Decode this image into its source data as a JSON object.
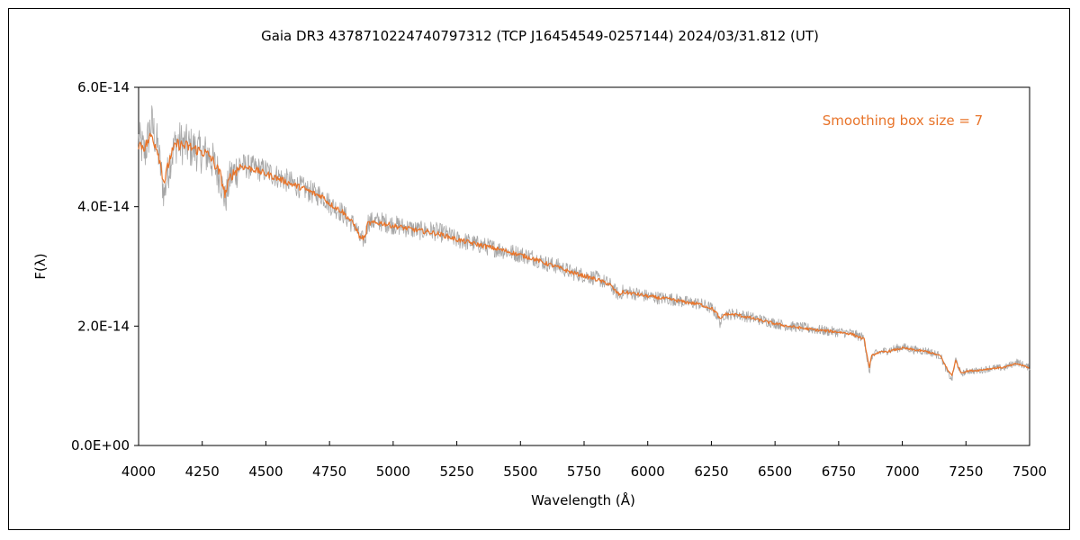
{
  "chart_data": {
    "type": "line",
    "title": "Gaia DR3 4378710224740797312 (TCP J16454549-0257144)   2024/03/31.812 (UT)",
    "xlabel": "Wavelength (Å)",
    "ylabel": "F(λ)",
    "annotation": "Smoothing box size = 7",
    "xlim": [
      4000,
      7500
    ],
    "ylim": [
      0,
      6e-14
    ],
    "x_ticks": [
      4000,
      4250,
      4500,
      4750,
      5000,
      5250,
      5500,
      5750,
      6000,
      6250,
      6500,
      6750,
      7000,
      7250,
      7500
    ],
    "x_tick_labels": [
      "4000",
      "4250",
      "4500",
      "4750",
      "5000",
      "5250",
      "5500",
      "5750",
      "6000",
      "6250",
      "6500",
      "6750",
      "7000",
      "7250",
      "7500"
    ],
    "y_ticks": [
      0,
      2e-14,
      4e-14,
      6e-14
    ],
    "y_tick_labels": [
      "0.0E+00",
      "2.0E-14",
      "4.0E-14",
      "6.0E-14"
    ],
    "grid": false,
    "legend": "none",
    "colors": {
      "raw": "#a6a6a6",
      "smoothed": "#e8742a",
      "annotation": "#e8742a"
    },
    "series": [
      {
        "style": "raw",
        "x": [
          4000,
          4025,
          4050,
          4075,
          4100,
          4125,
          4150,
          4200,
          4250,
          4280,
          4320,
          4340,
          4360,
          4400,
          4450,
          4500,
          4550,
          4600,
          4650,
          4700,
          4720,
          4750,
          4800,
          4830,
          4850,
          4870,
          4890,
          4900,
          4950,
          5000,
          5050,
          5100,
          5150,
          5200,
          5250,
          5300,
          5350,
          5400,
          5450,
          5500,
          5550,
          5600,
          5650,
          5700,
          5750,
          5800,
          5850,
          5870,
          5890,
          5900,
          5950,
          6000,
          6050,
          6100,
          6150,
          6200,
          6250,
          6270,
          6285,
          6300,
          6350,
          6400,
          6450,
          6500,
          6550,
          6600,
          6650,
          6700,
          6750,
          6800,
          6850,
          6860,
          6870,
          6880,
          6900,
          6950,
          7000,
          7050,
          7100,
          7150,
          7180,
          7195,
          7210,
          7230,
          7260,
          7300,
          7350,
          7400,
          7450,
          7500
        ],
        "y": [
          5.1e-14,
          4.9e-14,
          5.4e-14,
          5e-14,
          4.2e-14,
          4.8e-14,
          5.1e-14,
          5e-14,
          4.9e-14,
          4.85e-14,
          4.5e-14,
          4.1e-14,
          4.5e-14,
          4.7e-14,
          4.65e-14,
          4.6e-14,
          4.5e-14,
          4.4e-14,
          4.3e-14,
          4.2e-14,
          4.2e-14,
          4.05e-14,
          3.9e-14,
          3.75e-14,
          3.7e-14,
          3.45e-14,
          3.45e-14,
          3.75e-14,
          3.75e-14,
          3.7e-14,
          3.65e-14,
          3.6e-14,
          3.6e-14,
          3.55e-14,
          3.45e-14,
          3.4e-14,
          3.35e-14,
          3.3e-14,
          3.25e-14,
          3.2e-14,
          3.15e-14,
          3.05e-14,
          3e-14,
          2.9e-14,
          2.85e-14,
          2.8e-14,
          2.7e-14,
          2.6e-14,
          2.5e-14,
          2.58e-14,
          2.55e-14,
          2.5e-14,
          2.47e-14,
          2.45e-14,
          2.4e-14,
          2.38e-14,
          2.3e-14,
          2.2e-14,
          2.05e-14,
          2.2e-14,
          2.2e-14,
          2.15e-14,
          2.1e-14,
          2.05e-14,
          2e-14,
          1.98e-14,
          1.95e-14,
          1.92e-14,
          1.9e-14,
          1.88e-14,
          1.8e-14,
          1.5e-14,
          1.2e-14,
          1.5e-14,
          1.55e-14,
          1.6e-14,
          1.65e-14,
          1.6e-14,
          1.58e-14,
          1.5e-14,
          1.2e-14,
          1.1e-14,
          1.45e-14,
          1.2e-14,
          1.25e-14,
          1.25e-14,
          1.3e-14,
          1.3e-14,
          1.4e-14,
          1.3e-14
        ]
      },
      {
        "style": "smoothed",
        "x": [
          4000,
          4025,
          4050,
          4075,
          4100,
          4125,
          4150,
          4200,
          4250,
          4280,
          4320,
          4340,
          4360,
          4400,
          4450,
          4500,
          4550,
          4600,
          4650,
          4700,
          4720,
          4750,
          4800,
          4830,
          4850,
          4870,
          4890,
          4900,
          4950,
          5000,
          5050,
          5100,
          5150,
          5200,
          5250,
          5300,
          5350,
          5400,
          5450,
          5500,
          5550,
          5600,
          5650,
          5700,
          5750,
          5800,
          5850,
          5870,
          5890,
          5900,
          5950,
          6000,
          6050,
          6100,
          6150,
          6200,
          6250,
          6270,
          6285,
          6300,
          6350,
          6400,
          6450,
          6500,
          6550,
          6600,
          6650,
          6700,
          6750,
          6800,
          6850,
          6860,
          6870,
          6880,
          6900,
          6950,
          7000,
          7050,
          7100,
          7150,
          7180,
          7195,
          7210,
          7230,
          7260,
          7300,
          7350,
          7400,
          7450,
          7500
        ],
        "y": [
          5.05e-14,
          5e-14,
          5.2e-14,
          4.95e-14,
          4.4e-14,
          4.85e-14,
          5.05e-14,
          5e-14,
          4.92e-14,
          4.85e-14,
          4.55e-14,
          4.2e-14,
          4.5e-14,
          4.68e-14,
          4.63e-14,
          4.55e-14,
          4.47e-14,
          4.38e-14,
          4.3e-14,
          4.2e-14,
          4.18e-14,
          4.05e-14,
          3.92e-14,
          3.78e-14,
          3.68e-14,
          3.48e-14,
          3.48e-14,
          3.72e-14,
          3.73e-14,
          3.68e-14,
          3.64e-14,
          3.6e-14,
          3.57e-14,
          3.52e-14,
          3.45e-14,
          3.4e-14,
          3.35e-14,
          3.3e-14,
          3.25e-14,
          3.19e-14,
          3.13e-14,
          3.05e-14,
          2.98e-14,
          2.9e-14,
          2.84e-14,
          2.78e-14,
          2.7e-14,
          2.6e-14,
          2.52e-14,
          2.57e-14,
          2.54e-14,
          2.5e-14,
          2.47e-14,
          2.44e-14,
          2.4e-14,
          2.37e-14,
          2.3e-14,
          2.22e-14,
          2.1e-14,
          2.2e-14,
          2.19e-14,
          2.14e-14,
          2.09e-14,
          2.04e-14,
          2e-14,
          1.97e-14,
          1.94e-14,
          1.92e-14,
          1.9e-14,
          1.87e-14,
          1.78e-14,
          1.55e-14,
          1.3e-14,
          1.5e-14,
          1.55e-14,
          1.58e-14,
          1.63e-14,
          1.6e-14,
          1.57e-14,
          1.5e-14,
          1.25e-14,
          1.18e-14,
          1.42e-14,
          1.22e-14,
          1.25e-14,
          1.26e-14,
          1.29e-14,
          1.31e-14,
          1.37e-14,
          1.3e-14
        ]
      }
    ]
  }
}
